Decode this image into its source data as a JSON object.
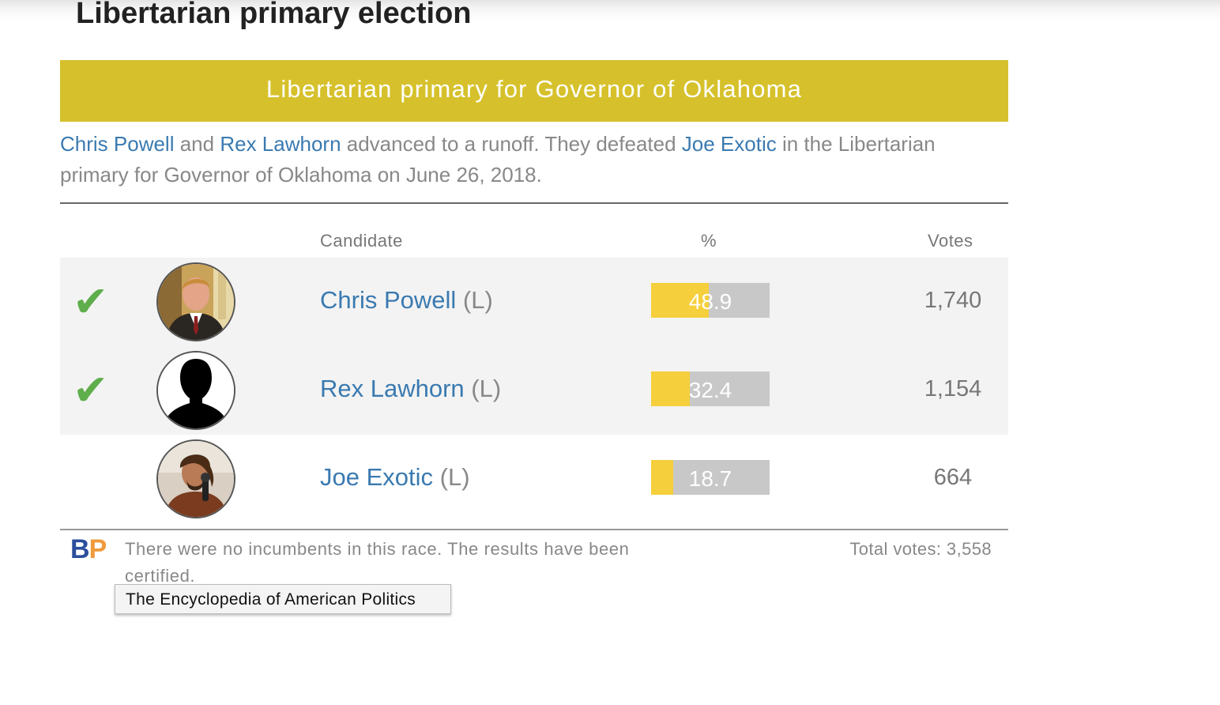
{
  "page": {
    "title": "Libertarian primary election"
  },
  "race": {
    "banner": "Libertarian primary for Governor of Oklahoma",
    "banner_color": "#d6c12c",
    "summary": {
      "candidate_a": "Chris Powell",
      "and": " and ",
      "candidate_b": "Rex Lawhorn",
      "middle": " advanced to a runoff. They defeated ",
      "candidate_c": "Joe Exotic",
      "end": " in the Libertarian primary for Governor of Oklahoma on June 26, 2018."
    }
  },
  "table": {
    "headers": {
      "candidate": "Candidate",
      "percent": "%",
      "votes": "Votes"
    },
    "rows": [
      {
        "winner_mark": "✔",
        "avatar": "photo",
        "name": "Chris Powell",
        "party": " (L)",
        "percent": "48.9",
        "percent_value": 48.9,
        "votes": "1,740"
      },
      {
        "winner_mark": "✔",
        "avatar": "silhouette-icon",
        "name": "Rex Lawhorn",
        "party": " (L)",
        "percent": "32.4",
        "percent_value": 32.4,
        "votes": "1,154"
      },
      {
        "winner_mark": "",
        "avatar": "photo",
        "name": "Joe Exotic",
        "party": " (L)",
        "percent": "18.7",
        "percent_value": 18.7,
        "votes": "664"
      }
    ]
  },
  "footer": {
    "logo_b": "B",
    "logo_p": "P",
    "note": "There were no incumbents in this race. The results have been certified.",
    "total": "Total votes: 3,558"
  },
  "tooltip": {
    "text": "The Encyclopedia of American Politics"
  },
  "colors": {
    "link": "#3a7ab0",
    "winner_check": "#5fae4c",
    "bar_fill": "#f5cf3c",
    "bar_track": "#c8c8c8",
    "logo_b": "#2b4e9c",
    "logo_p": "#ef9a3b"
  }
}
